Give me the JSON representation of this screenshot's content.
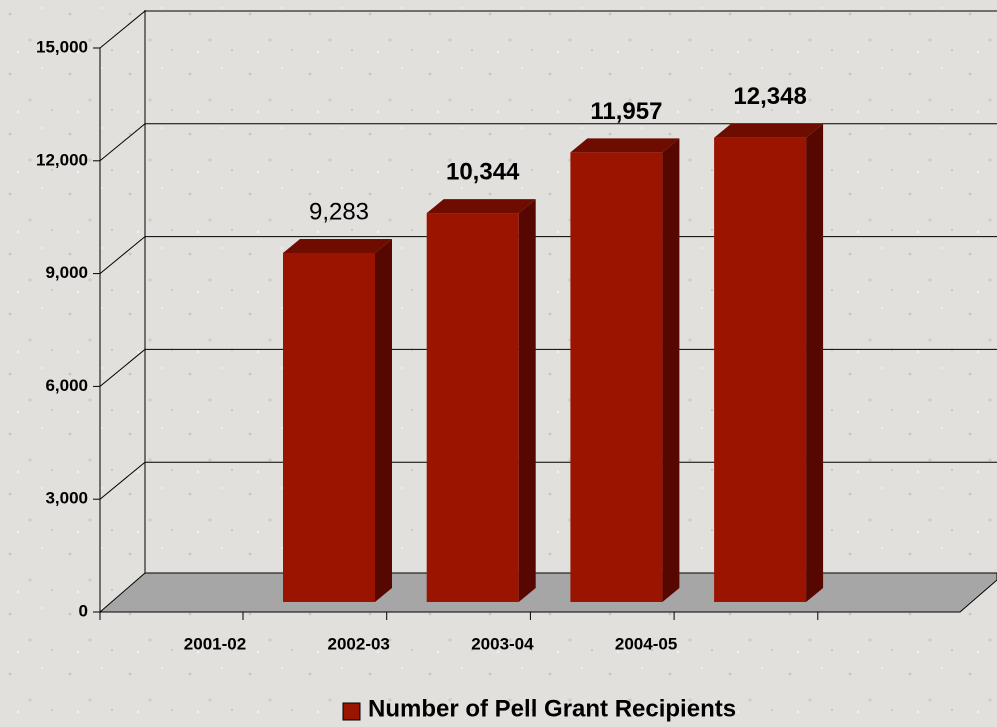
{
  "chart_data": {
    "type": "bar",
    "categories": [
      "2001-02",
      "2002-03",
      "2003-04",
      "2004-05"
    ],
    "series": [
      {
        "name": "Number of Pell Grant Recipients",
        "color": "#9a1400",
        "values": [
          9283,
          10344,
          11957,
          12348
        ],
        "value_labels": [
          "9,283",
          "10,344",
          "11,957",
          "12,348"
        ]
      }
    ],
    "ylim": [
      0,
      15000
    ],
    "yticks": [
      0,
      {
        "value": 3000,
        "label": "3,000"
      },
      {
        "value": 6000,
        "label": "6,000"
      },
      {
        "value": 9000,
        "label": "9,000"
      },
      {
        "value": 12000,
        "label": "12,000"
      },
      {
        "value": 15000,
        "label": "15,000"
      }
    ],
    "grid": true,
    "legend": "bottom"
  }
}
